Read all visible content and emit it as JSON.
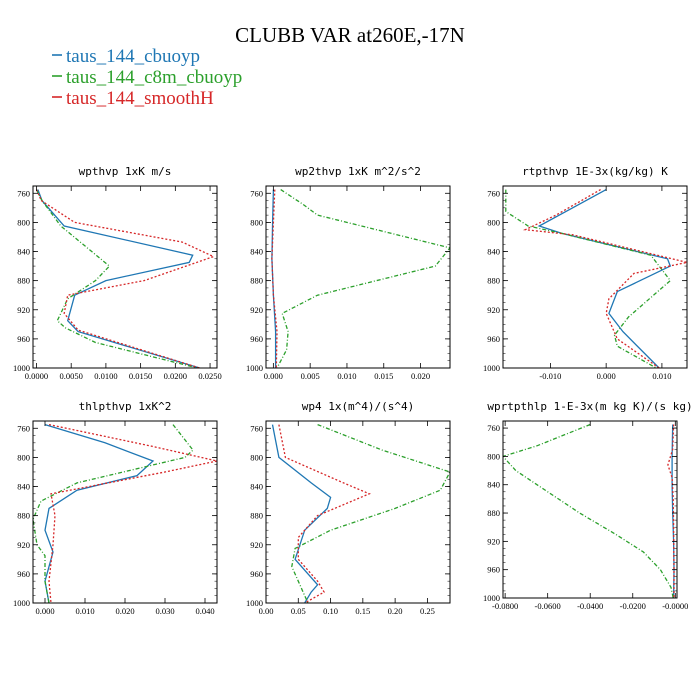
{
  "title": "CLUBB VAR at260E,-17N",
  "legend": [
    {
      "name": "taus_144_cbuoyp",
      "color": "#1f77b4"
    },
    {
      "name": "taus_144_c8m_cbuoyp",
      "color": "#2ca02c"
    },
    {
      "name": "taus_144_smoothH",
      "color": "#d62728"
    }
  ],
  "chart_data": [
    {
      "type": "line",
      "title": "wpthvp  1xK m/s",
      "xlim": [
        -0.0005,
        0.026
      ],
      "ylim": [
        1000,
        750
      ],
      "xticks": [
        {
          "v": 0.0,
          "t": "0.0000"
        },
        {
          "v": 0.005,
          "t": "0.0050"
        },
        {
          "v": 0.01,
          "t": "0.0100"
        },
        {
          "v": 0.015,
          "t": "0.0150"
        },
        {
          "v": 0.02,
          "t": "0.0200"
        },
        {
          "v": 0.025,
          "t": "0.0250"
        }
      ],
      "yticks": [
        760,
        800,
        840,
        880,
        920,
        960,
        1000
      ],
      "series": [
        {
          "name": "taus_144_cbuoyp",
          "y": [
            755,
            770,
            805,
            845,
            855,
            880,
            900,
            935,
            950,
            1000
          ],
          "x": [
            0.0002,
            0.0008,
            0.004,
            0.0225,
            0.022,
            0.01,
            0.0055,
            0.0045,
            0.006,
            0.0235
          ]
        },
        {
          "name": "taus_144_c8m_cbuoyp",
          "y": [
            755,
            770,
            805,
            860,
            880,
            905,
            935,
            945,
            965,
            1000
          ],
          "x": [
            0.0,
            0.0008,
            0.0035,
            0.0105,
            0.0085,
            0.0045,
            0.003,
            0.0042,
            0.0085,
            0.0232
          ]
        },
        {
          "name": "taus_144_smoothH",
          "y": [
            755,
            770,
            800,
            827,
            847,
            880,
            900,
            925,
            948,
            1000
          ],
          "x": [
            0.0,
            0.0007,
            0.0055,
            0.021,
            0.0255,
            0.0155,
            0.0045,
            0.004,
            0.006,
            0.0235
          ]
        }
      ]
    },
    {
      "type": "line",
      "title": "wp2thvp  1xK m^2/s^2",
      "xlim": [
        -0.001,
        0.024
      ],
      "ylim": [
        1000,
        750
      ],
      "xticks": [
        {
          "v": 0.0,
          "t": "0.000"
        },
        {
          "v": 0.005,
          "t": "0.005"
        },
        {
          "v": 0.01,
          "t": "0.010"
        },
        {
          "v": 0.015,
          "t": "0.015"
        },
        {
          "v": 0.02,
          "t": "0.020"
        }
      ],
      "yticks": [
        760,
        800,
        840,
        880,
        920,
        960,
        1000
      ],
      "series": [
        {
          "name": "taus_144_cbuoyp",
          "y": [
            755,
            800,
            850,
            900,
            950,
            1000
          ],
          "x": [
            0.0,
            -0.0001,
            -0.0002,
            0.0,
            0.0003,
            0.0003
          ]
        },
        {
          "name": "taus_144_c8m_cbuoyp",
          "y": [
            755,
            775,
            790,
            835,
            860,
            900,
            925,
            950,
            975,
            1000
          ],
          "x": [
            0.001,
            0.004,
            0.006,
            0.024,
            0.022,
            0.006,
            0.0012,
            0.002,
            0.0018,
            0.0005
          ]
        },
        {
          "name": "taus_144_smoothH",
          "y": [
            755,
            800,
            850,
            900,
            950,
            1000
          ],
          "x": [
            0.0002,
            0.0,
            -0.0002,
            0.0,
            0.0005,
            0.0004
          ]
        }
      ]
    },
    {
      "type": "line",
      "title": "rtpthvp  1E-3x(kg/kg) K",
      "xlim": [
        -0.0185,
        0.0145
      ],
      "ylim": [
        1000,
        750
      ],
      "xticks": [
        {
          "v": -0.01,
          "t": "-0.010"
        },
        {
          "v": 0.0,
          "t": "0.000"
        },
        {
          "v": 0.01,
          "t": "0.010"
        }
      ],
      "yticks": [
        760,
        800,
        840,
        880,
        920,
        960,
        1000
      ],
      "series": [
        {
          "name": "taus_144_cbuoyp",
          "y": [
            755,
            780,
            805,
            815,
            850,
            860,
            895,
            925,
            950,
            1000
          ],
          "x": [
            0.0,
            -0.006,
            -0.012,
            -0.008,
            0.011,
            0.0115,
            0.002,
            0.0005,
            0.003,
            0.0095
          ]
        },
        {
          "name": "taus_144_c8m_cbuoyp",
          "y": [
            755,
            785,
            805,
            815,
            845,
            880,
            930,
            955,
            970,
            1000
          ],
          "x": [
            -0.018,
            -0.018,
            -0.014,
            -0.008,
            0.008,
            0.0115,
            0.004,
            0.0015,
            0.002,
            0.009
          ]
        },
        {
          "name": "taus_144_smoothH",
          "y": [
            755,
            790,
            810,
            817,
            855,
            870,
            905,
            925,
            960,
            1000
          ],
          "x": [
            -0.001,
            -0.009,
            -0.0145,
            -0.006,
            0.0145,
            0.005,
            0.0005,
            0.0,
            0.002,
            0.0095
          ]
        }
      ]
    },
    {
      "type": "line",
      "title": "thlpthvp  1xK^2",
      "xlim": [
        -0.003,
        0.043
      ],
      "ylim": [
        1000,
        750
      ],
      "xticks": [
        {
          "v": 0.0,
          "t": "0.000"
        },
        {
          "v": 0.01,
          "t": "0.010"
        },
        {
          "v": 0.02,
          "t": "0.020"
        },
        {
          "v": 0.03,
          "t": "0.030"
        },
        {
          "v": 0.04,
          "t": "0.040"
        }
      ],
      "yticks": [
        760,
        800,
        840,
        880,
        920,
        960,
        1000
      ],
      "series": [
        {
          "name": "taus_144_cbuoyp",
          "y": [
            755,
            780,
            805,
            825,
            845,
            870,
            900,
            930,
            970,
            1000
          ],
          "x": [
            0.0,
            0.015,
            0.027,
            0.023,
            0.008,
            0.001,
            0.0,
            0.002,
            0.0,
            0.001
          ]
        },
        {
          "name": "taus_144_c8m_cbuoyp",
          "y": [
            755,
            790,
            800,
            835,
            860,
            885,
            920,
            935,
            970,
            1000
          ],
          "x": [
            0.032,
            0.037,
            0.035,
            0.008,
            -0.001,
            -0.003,
            -0.002,
            0.0,
            0.0,
            0.001
          ]
        },
        {
          "name": "taus_144_smoothH",
          "y": [
            755,
            785,
            805,
            820,
            850,
            880,
            920,
            970,
            1000
          ],
          "x": [
            0.001,
            0.027,
            0.043,
            0.03,
            0.0015,
            0.0025,
            0.002,
            0.001,
            0.0015
          ]
        }
      ]
    },
    {
      "type": "line",
      "title": "wp4  1x(m^4)/(s^4)",
      "xlim": [
        0.0,
        0.285
      ],
      "ylim": [
        1000,
        750
      ],
      "xticks": [
        {
          "v": 0.0,
          "t": "0.00"
        },
        {
          "v": 0.05,
          "t": "0.05"
        },
        {
          "v": 0.1,
          "t": "0.10"
        },
        {
          "v": 0.15,
          "t": "0.15"
        },
        {
          "v": 0.2,
          "t": "0.20"
        },
        {
          "v": 0.25,
          "t": "0.25"
        }
      ],
      "yticks": [
        760,
        800,
        840,
        880,
        920,
        960,
        1000
      ],
      "series": [
        {
          "name": "taus_144_cbuoyp",
          "y": [
            755,
            800,
            835,
            855,
            870,
            900,
            940,
            960,
            975,
            985,
            1000
          ],
          "x": [
            0.01,
            0.02,
            0.07,
            0.1,
            0.095,
            0.06,
            0.045,
            0.065,
            0.08,
            0.07,
            0.06
          ]
        },
        {
          "name": "taus_144_c8m_cbuoyp",
          "y": [
            755,
            790,
            820,
            845,
            870,
            900,
            925,
            950,
            970,
            990,
            1000
          ],
          "x": [
            0.08,
            0.18,
            0.285,
            0.27,
            0.2,
            0.1,
            0.045,
            0.04,
            0.05,
            0.06,
            0.065
          ]
        },
        {
          "name": "taus_144_smoothH",
          "y": [
            755,
            800,
            835,
            850,
            880,
            910,
            940,
            970,
            985,
            1000
          ],
          "x": [
            0.02,
            0.03,
            0.12,
            0.16,
            0.08,
            0.05,
            0.05,
            0.08,
            0.09,
            0.06
          ]
        }
      ]
    },
    {
      "type": "line",
      "title": "wprtpthlp  1-E-3x(m kg K)/(s kg)",
      "xlim": [
        -0.081,
        0.0008
      ],
      "ylim": [
        1000,
        750
      ],
      "xticks": [
        {
          "v": -0.08,
          "t": "-0.0800"
        },
        {
          "v": -0.06,
          "t": "-0.0600"
        },
        {
          "v": -0.04,
          "t": "-0.0400"
        },
        {
          "v": -0.02,
          "t": "-0.0200"
        },
        {
          "v": 0.0,
          "t": "-0.0000"
        }
      ],
      "yticks": [
        760,
        800,
        840,
        880,
        920,
        960,
        1000
      ],
      "series": [
        {
          "name": "taus_144_cbuoyp",
          "y": [
            755,
            800,
            840,
            880,
            920,
            960,
            1000
          ],
          "x": [
            -0.0012,
            -0.0015,
            -0.0015,
            -0.0012,
            -0.0008,
            -0.0006,
            -0.0008
          ]
        },
        {
          "name": "taus_144_c8m_cbuoyp",
          "y": [
            755,
            785,
            800,
            820,
            850,
            880,
            910,
            935,
            960,
            985,
            1000
          ],
          "x": [
            -0.04,
            -0.065,
            -0.081,
            -0.075,
            -0.06,
            -0.045,
            -0.028,
            -0.015,
            -0.007,
            -0.002,
            -0.001
          ]
        },
        {
          "name": "taus_144_smoothH",
          "y": [
            755,
            790,
            812,
            830,
            860,
            900,
            960,
            1000
          ],
          "x": [
            -0.0008,
            -0.0012,
            -0.0035,
            -0.0015,
            -0.001,
            -0.0008,
            -0.0006,
            -0.0006
          ]
        }
      ]
    }
  ]
}
